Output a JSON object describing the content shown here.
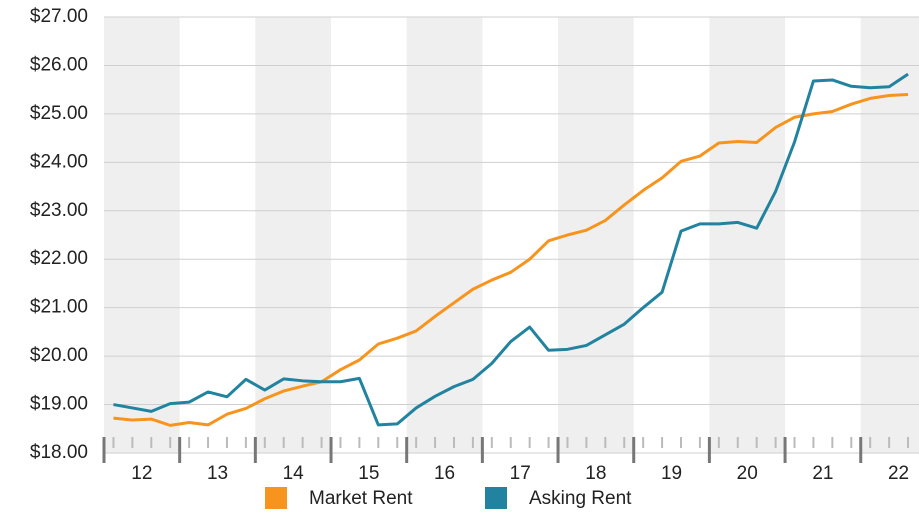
{
  "chart_data": {
    "type": "line",
    "x": [
      11.625,
      11.875,
      12.125,
      12.375,
      12.625,
      12.875,
      13.125,
      13.375,
      13.625,
      13.875,
      14.125,
      14.375,
      14.625,
      14.875,
      15.125,
      15.375,
      15.625,
      15.875,
      16.125,
      16.375,
      16.625,
      16.875,
      17.125,
      17.375,
      17.625,
      17.875,
      18.125,
      18.375,
      18.625,
      18.875,
      19.125,
      19.375,
      19.625,
      19.875,
      20.125,
      20.375,
      20.625,
      20.875,
      21.125,
      21.375,
      21.625,
      21.875,
      22.125
    ],
    "series": [
      {
        "name": "Market Rent",
        "color": "#f7941d",
        "values": [
          18.72,
          18.68,
          18.7,
          18.57,
          18.63,
          18.58,
          18.8,
          18.92,
          19.12,
          19.28,
          19.38,
          19.47,
          19.72,
          19.92,
          20.25,
          20.37,
          20.52,
          20.82,
          21.1,
          21.38,
          21.57,
          21.73,
          22.0,
          22.38,
          22.5,
          22.6,
          22.8,
          23.12,
          23.42,
          23.68,
          24.02,
          24.13,
          24.4,
          24.43,
          24.41,
          24.72,
          24.93,
          25.0,
          25.05,
          25.2,
          25.32,
          25.38,
          25.4
        ]
      },
      {
        "name": "Asking Rent",
        "color": "#21839f",
        "values": [
          19.0,
          18.93,
          18.86,
          19.02,
          19.05,
          19.26,
          19.16,
          19.52,
          19.3,
          19.53,
          19.49,
          19.47,
          19.47,
          19.54,
          18.58,
          18.6,
          18.93,
          19.17,
          19.37,
          19.52,
          19.85,
          20.3,
          20.6,
          20.12,
          20.14,
          20.22,
          20.44,
          20.66,
          21.0,
          21.32,
          22.58,
          22.73,
          22.73,
          22.76,
          22.64,
          23.4,
          24.42,
          25.68,
          25.7,
          25.57,
          25.54,
          25.56,
          25.82
        ]
      }
    ],
    "xlim": [
      11.5,
      22.27
    ],
    "xticks": [
      12,
      13,
      14,
      15,
      16,
      17,
      18,
      19,
      20,
      21,
      22
    ],
    "ylim": [
      18,
      27
    ],
    "yticks": [
      {
        "value": 18,
        "label": "$18.00"
      },
      {
        "value": 19,
        "label": "$19.00"
      },
      {
        "value": 20,
        "label": "$20.00"
      },
      {
        "value": 21,
        "label": "$21.00"
      },
      {
        "value": 22,
        "label": "$22.00"
      },
      {
        "value": 23,
        "label": "$23.00"
      },
      {
        "value": 24,
        "label": "$24.00"
      },
      {
        "value": 25,
        "label": "$25.00"
      },
      {
        "value": 26,
        "label": "$26.00"
      },
      {
        "value": 27,
        "label": "$27.00"
      }
    ],
    "grid": true
  }
}
